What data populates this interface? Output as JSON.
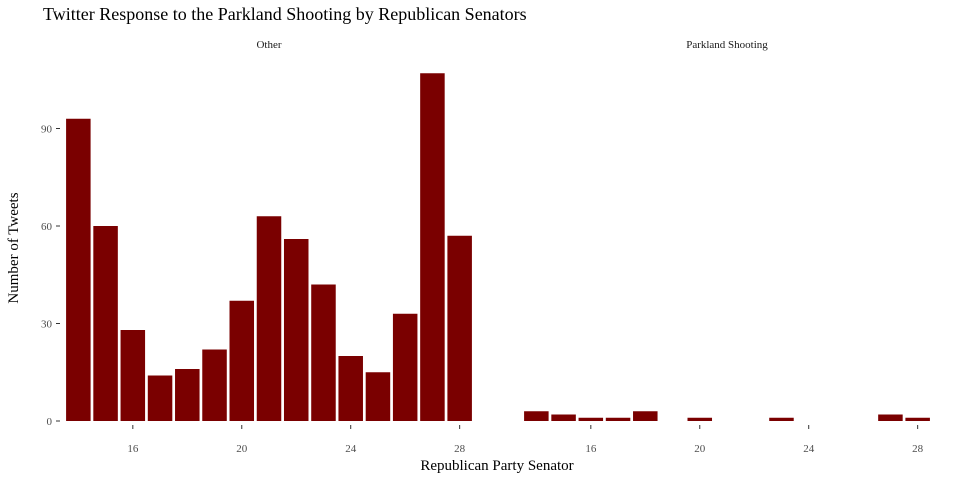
{
  "chart_data": {
    "type": "bar",
    "title": "Twitter Response to the Parkland Shooting by Republican Senators",
    "xlabel": "Republican Party Senator",
    "ylabel": "Number of Tweets",
    "ylim": [
      0,
      110
    ],
    "yticks": [
      0,
      30,
      60,
      90
    ],
    "xticks": [
      16,
      20,
      24,
      28
    ],
    "xlim": [
      13.4,
      28.6
    ],
    "grid": false,
    "bar_color": "#7a0000",
    "panels": [
      {
        "label": "Other",
        "x": [
          14,
          15,
          16,
          17,
          18,
          19,
          20,
          21,
          22,
          23,
          24,
          25,
          26,
          27,
          28
        ],
        "values": [
          93,
          60,
          28,
          14,
          16,
          22,
          37,
          63,
          56,
          42,
          20,
          15,
          33,
          107,
          57
        ]
      },
      {
        "label": "Parkland Shooting",
        "x": [
          14,
          15,
          16,
          17,
          18,
          20,
          23,
          27,
          28
        ],
        "values": [
          3,
          2,
          1,
          1,
          3,
          1,
          1,
          2,
          1
        ]
      }
    ]
  }
}
